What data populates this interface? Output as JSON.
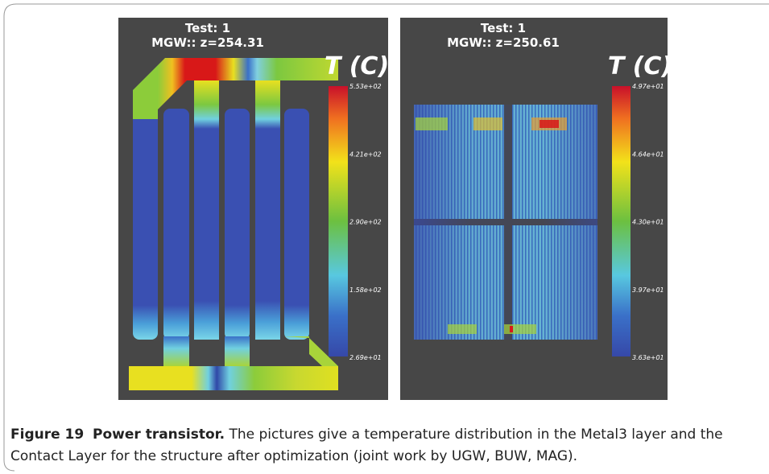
{
  "panels": [
    {
      "title": "Test: 1",
      "subtitle": "MGW:: z=254.31",
      "colorbar": {
        "title": "T (C)",
        "labels": [
          "5.53e+02",
          "4.21e+02",
          "2.90e+02",
          "1.58e+02",
          "2.69e+01"
        ]
      }
    },
    {
      "title": "Test: 1",
      "subtitle": "MGW:: z=250.61",
      "colorbar": {
        "title": "T (C)",
        "labels": [
          "4.97e+01",
          "4.64e+01",
          "4.30e+01",
          "3.97e+01",
          "3.63e+01"
        ]
      }
    }
  ],
  "caption": {
    "label": "Figure 19",
    "title": "Power transistor.",
    "text": "The pictures give a temperature distribution in the Metal3 layer and the Contact Layer for the structure after optimization (joint work by UGW, BUW, MAG)."
  }
}
